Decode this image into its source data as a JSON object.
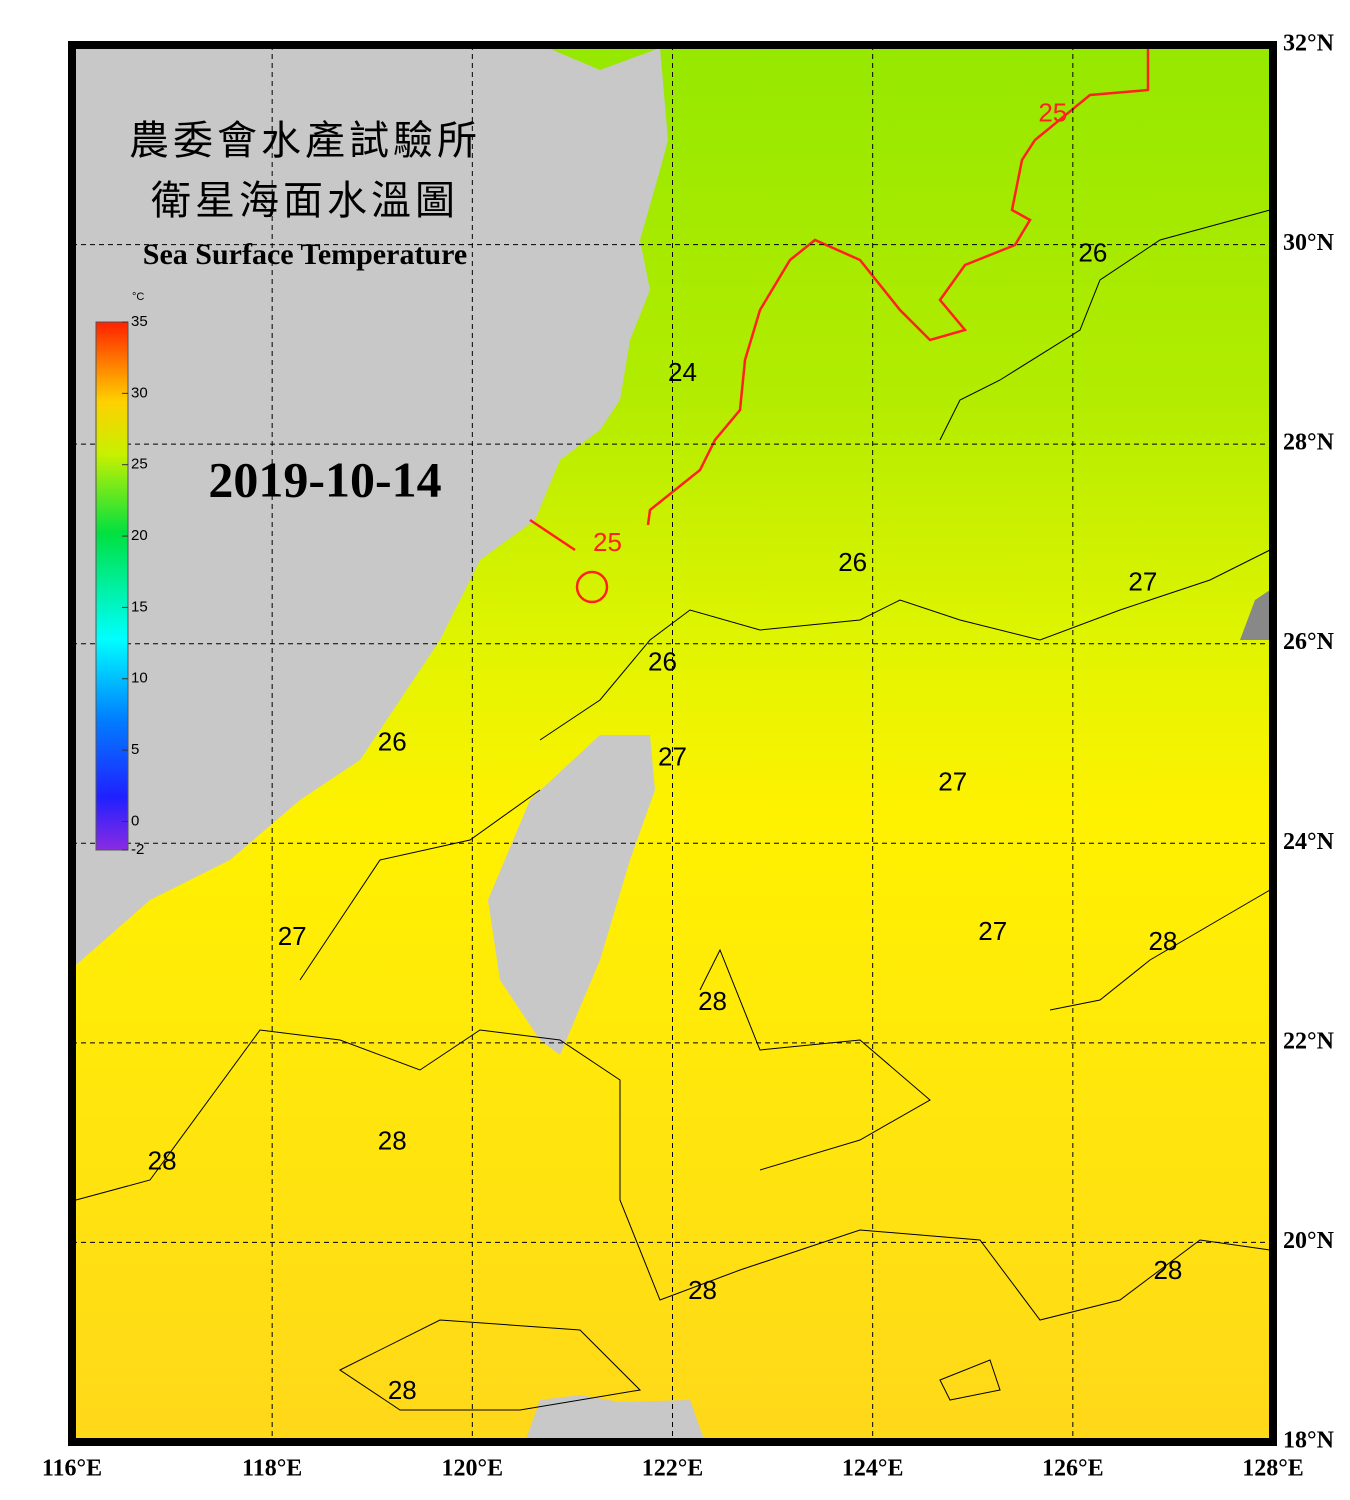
{
  "title": {
    "zh_line1": "農委會水產試驗所",
    "zh_line2": "衛星海面水溫圖",
    "en": "Sea Surface Temperature"
  },
  "date": "2019-10-14",
  "colorbar": {
    "unit": "°C",
    "range": [
      -2,
      35
    ],
    "ticks": [
      35,
      30,
      25,
      20,
      15,
      10,
      5,
      0,
      -2
    ]
  },
  "map": {
    "lon_range": [
      116,
      128
    ],
    "lat_range": [
      18,
      32
    ],
    "lon_ticks": [
      {
        "value": 116,
        "label": "116°E"
      },
      {
        "value": 118,
        "label": "118°E"
      },
      {
        "value": 120,
        "label": "120°E"
      },
      {
        "value": 122,
        "label": "122°E"
      },
      {
        "value": 124,
        "label": "124°E"
      },
      {
        "value": 126,
        "label": "126°E"
      },
      {
        "value": 128,
        "label": "128°E"
      }
    ],
    "lat_ticks": [
      {
        "value": 18,
        "label": "18°N"
      },
      {
        "value": 20,
        "label": "20°N"
      },
      {
        "value": 22,
        "label": "22°N"
      },
      {
        "value": 24,
        "label": "24°N"
      },
      {
        "value": 26,
        "label": "26°N"
      },
      {
        "value": 28,
        "label": "28°N"
      },
      {
        "value": 30,
        "label": "30°N"
      },
      {
        "value": 32,
        "label": "32°N"
      }
    ],
    "contour_labels": [
      {
        "label": "25",
        "lon": 125.8,
        "lat": 31.3,
        "color": "#ff2020"
      },
      {
        "label": "25",
        "lon": 121.35,
        "lat": 27.0,
        "color": "#ff2020"
      },
      {
        "label": "24",
        "lon": 122.1,
        "lat": 28.7,
        "color": "#000000"
      },
      {
        "label": "26",
        "lon": 126.2,
        "lat": 29.9,
        "color": "#000000"
      },
      {
        "label": "26",
        "lon": 123.8,
        "lat": 26.8,
        "color": "#000000"
      },
      {
        "label": "26",
        "lon": 121.9,
        "lat": 25.8,
        "color": "#000000"
      },
      {
        "label": "26",
        "lon": 119.2,
        "lat": 25.0,
        "color": "#000000"
      },
      {
        "label": "27",
        "lon": 122.0,
        "lat": 24.85,
        "color": "#000000"
      },
      {
        "label": "27",
        "lon": 126.7,
        "lat": 26.6,
        "color": "#000000"
      },
      {
        "label": "27",
        "lon": 124.8,
        "lat": 24.6,
        "color": "#000000"
      },
      {
        "label": "27",
        "lon": 125.2,
        "lat": 23.1,
        "color": "#000000"
      },
      {
        "label": "27",
        "lon": 118.2,
        "lat": 23.05,
        "color": "#000000"
      },
      {
        "label": "28",
        "lon": 126.9,
        "lat": 23.0,
        "color": "#000000"
      },
      {
        "label": "28",
        "lon": 122.4,
        "lat": 22.4,
        "color": "#000000"
      },
      {
        "label": "28",
        "lon": 116.9,
        "lat": 20.8,
        "color": "#000000"
      },
      {
        "label": "28",
        "lon": 119.2,
        "lat": 21.0,
        "color": "#000000"
      },
      {
        "label": "28",
        "lon": 122.3,
        "lat": 19.5,
        "color": "#000000"
      },
      {
        "label": "28",
        "lon": 126.95,
        "lat": 19.7,
        "color": "#000000"
      },
      {
        "label": "28",
        "lon": 119.3,
        "lat": 18.5,
        "color": "#000000"
      }
    ]
  }
}
